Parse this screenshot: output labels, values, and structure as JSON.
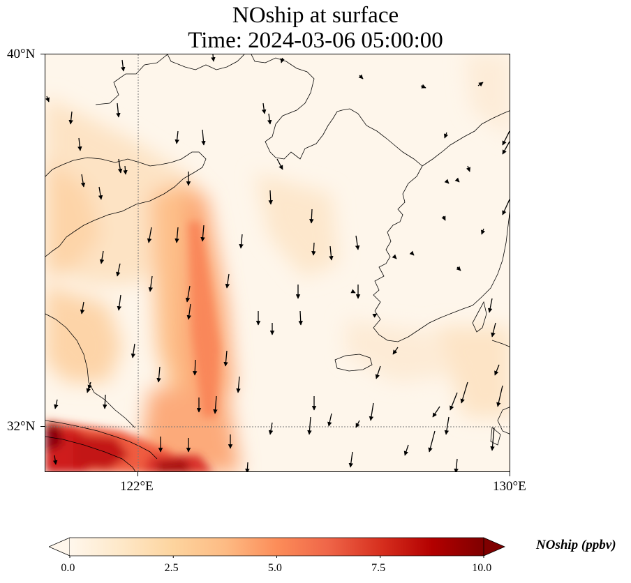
{
  "title": {
    "line1": "NOship at surface",
    "line2": "Time: 2024-03-06 05:00:00"
  },
  "map": {
    "lon_range": [
      120,
      130
    ],
    "lat_range": [
      31,
      40
    ],
    "grid_lines_dotted": true,
    "lat_ticks": [
      {
        "value": 40,
        "label": "40°N"
      },
      {
        "value": 32,
        "label": "32°N"
      }
    ],
    "lon_ticks": [
      {
        "value": 122,
        "label": "122°E"
      },
      {
        "value": 130,
        "label": "130°E"
      }
    ],
    "gridlines": {
      "lon": 122,
      "lat": 32
    }
  },
  "colorbar": {
    "title": "NOship (ppbv)",
    "min": 0.0,
    "max": 10.0,
    "extend": "both",
    "colormap": "OrRd",
    "ticks": [
      {
        "value": 0.0,
        "label": "0.0"
      },
      {
        "value": 2.5,
        "label": "2.5"
      },
      {
        "value": 5.0,
        "label": "5.0"
      },
      {
        "value": 7.5,
        "label": "7.5"
      },
      {
        "value": 10.0,
        "label": "10.0"
      }
    ]
  },
  "colors": {
    "coast": "#000000",
    "arrow": "#000000",
    "gridline": "#777777"
  }
}
